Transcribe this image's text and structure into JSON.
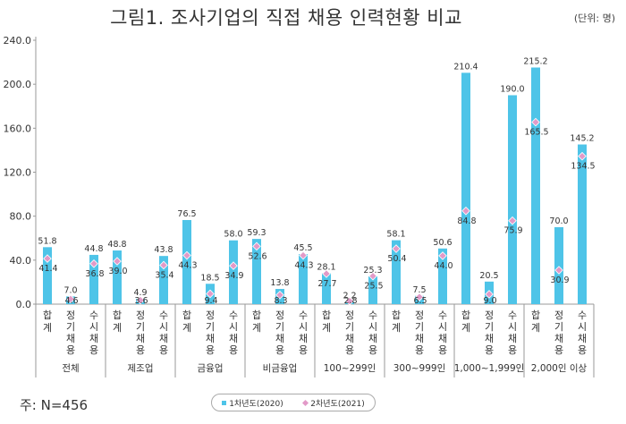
{
  "title": "그림1. 조사기업의 직접 채용 인력현황 비교",
  "unit": "(단위: 명)",
  "note": "주: N=456",
  "chart_data": {
    "type": "bar",
    "y_ticks": [
      "0.0",
      "40.0",
      "80.0",
      "120.0",
      "160.0",
      "200.0",
      "240.0"
    ],
    "ylim": [
      0,
      240
    ],
    "groups": [
      "전체",
      "제조업",
      "금융업",
      "비금융업",
      "100~299인",
      "300~999인",
      "1,000~1,999인",
      "2,000인 이상"
    ],
    "subcategories": [
      "합계",
      "정기채용",
      "수시채용"
    ],
    "series": [
      {
        "name": "1차년도(2020)",
        "type": "bar",
        "color": "#4ec4e8",
        "values": [
          51.8,
          7.0,
          44.8,
          48.8,
          4.9,
          43.8,
          76.5,
          18.5,
          58.0,
          59.3,
          13.8,
          45.5,
          28.1,
          2.2,
          25.3,
          58.1,
          7.5,
          50.6,
          210.4,
          20.5,
          190.0,
          215.2,
          70.0,
          145.2
        ]
      },
      {
        "name": "2차년도(2021)",
        "type": "marker",
        "color": "#e29ac8",
        "values": [
          41.4,
          4.6,
          36.8,
          39.0,
          3.6,
          35.4,
          44.3,
          9.4,
          34.9,
          52.6,
          8.3,
          44.3,
          27.7,
          2.8,
          25.5,
          50.4,
          6.5,
          44.0,
          84.8,
          9.0,
          75.9,
          165.5,
          30.9,
          134.5
        ]
      }
    ]
  }
}
